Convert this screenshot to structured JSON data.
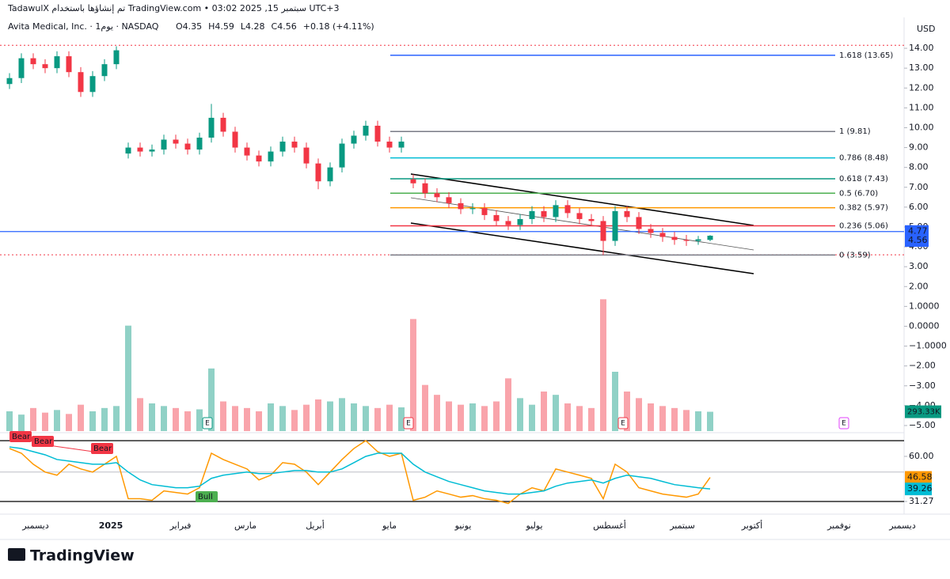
{
  "header": {
    "title": "TadawulX تم إنشاؤها باستخدام TradingView.com • 03:02 2025 ,15 سبتمبر UTC+3",
    "symbol": "Avita Medical, Inc. · 1يوم · NASDAQ",
    "values": [
      "O4.35",
      "H4.59",
      "L4.28",
      "C4.56",
      "+0.18 (+4.11%)"
    ],
    "currency": "USD"
  },
  "footer": {
    "logo": "TradingView"
  },
  "chart_data": {
    "type": "candlestick",
    "up_color": "#089981",
    "down_color": "#f23645",
    "ylim": [
      -5.28,
      14.64
    ],
    "yticks": [
      {
        "value": 14,
        "label": "14.00"
      },
      {
        "value": 13,
        "label": "13.00"
      },
      {
        "value": 12,
        "label": "12.00"
      },
      {
        "value": 11,
        "label": "11.00"
      },
      {
        "value": 10,
        "label": "10.00"
      },
      {
        "value": 9,
        "label": "9.00"
      },
      {
        "value": 8,
        "label": "8.00"
      },
      {
        "value": 7,
        "label": "7.00"
      },
      {
        "value": 6,
        "label": "6.00"
      },
      {
        "value": 5,
        "label": "5.00"
      },
      {
        "value": 4,
        "label": "4.00"
      },
      {
        "value": 3,
        "label": "3.00"
      },
      {
        "value": 2,
        "label": "2.00"
      },
      {
        "value": 1,
        "label": "1.0000"
      },
      {
        "value": 0,
        "label": "0.0000"
      },
      {
        "value": -1,
        "label": "−1.0000"
      },
      {
        "value": -2,
        "label": "−2.00"
      },
      {
        "value": -3,
        "label": "−3.00"
      },
      {
        "value": -4,
        "label": "−4.00"
      },
      {
        "value": -5,
        "label": "−5.00"
      }
    ],
    "x_labels": [
      "ديسمبر",
      "2025",
      "فبراير",
      "مارس",
      "أبريل",
      "مايو",
      "يونيو",
      "يوليو",
      "أغسطس",
      "سبتمبر",
      "أكتوبر",
      "نوفمبر",
      "ديسمبر"
    ],
    "open": [
      12.2,
      12.5,
      13.5,
      13.2,
      13.0,
      13.6,
      12.8,
      11.8,
      12.6,
      13.2,
      8.7,
      9.0,
      8.8,
      8.9,
      9.4,
      9.2,
      8.9,
      9.5,
      10.5,
      9.8,
      9.0,
      8.6,
      8.3,
      8.8,
      9.3,
      9.0,
      8.2,
      7.3,
      8.0,
      9.2,
      9.6,
      10.1,
      9.3,
      9.0,
      7.4,
      7.2,
      6.7,
      6.5,
      6.2,
      5.9,
      5.95,
      5.6,
      5.3,
      5.1,
      5.4,
      5.8,
      5.5,
      6.1,
      5.7,
      5.4,
      5.3,
      4.3,
      5.8,
      5.5,
      4.9,
      4.7,
      4.5,
      4.35,
      4.3,
      4.35
    ],
    "high": [
      12.75,
      13.75,
      13.75,
      13.45,
      13.85,
      13.85,
      13.05,
      12.85,
      13.45,
      14.1,
      9.25,
      9.25,
      9.15,
      9.65,
      9.65,
      9.45,
      9.75,
      11.2,
      10.75,
      10.05,
      9.25,
      8.85,
      9.05,
      9.55,
      9.55,
      9.25,
      8.45,
      8.25,
      9.45,
      9.85,
      10.35,
      10.35,
      9.55,
      9.55,
      7.65,
      7.45,
      6.95,
      6.75,
      6.45,
      6.2,
      6.2,
      5.85,
      5.55,
      5.65,
      6.05,
      6.05,
      6.35,
      6.35,
      5.95,
      5.65,
      5.55,
      6.05,
      6.05,
      5.75,
      5.15,
      4.95,
      4.75,
      4.6,
      4.55,
      4.59
    ],
    "low": [
      11.95,
      12.25,
      12.95,
      12.75,
      12.75,
      12.55,
      11.55,
      11.55,
      12.35,
      12.95,
      8.45,
      8.55,
      8.55,
      8.65,
      8.95,
      8.65,
      8.65,
      9.25,
      9.55,
      8.75,
      8.35,
      8.05,
      8.05,
      8.55,
      8.75,
      7.95,
      6.9,
      7.05,
      7.75,
      8.95,
      9.35,
      9.05,
      8.75,
      8.75,
      6.95,
      6.45,
      6.25,
      5.95,
      5.65,
      5.65,
      5.35,
      5.05,
      4.85,
      4.85,
      5.15,
      5.25,
      5.25,
      5.45,
      5.15,
      5.05,
      3.59,
      4.05,
      5.25,
      4.65,
      4.45,
      4.25,
      4.1,
      4.05,
      4.1,
      4.28
    ],
    "close": [
      12.5,
      13.5,
      13.2,
      13.0,
      13.6,
      12.8,
      11.8,
      12.6,
      13.2,
      13.9,
      9.0,
      8.8,
      8.9,
      9.4,
      9.2,
      8.9,
      9.5,
      10.5,
      9.8,
      9.0,
      8.6,
      8.3,
      8.8,
      9.3,
      9.0,
      8.2,
      7.3,
      8.0,
      9.2,
      9.6,
      10.1,
      9.3,
      9.0,
      9.3,
      7.2,
      6.7,
      6.5,
      6.2,
      5.9,
      5.95,
      5.6,
      5.3,
      5.1,
      5.4,
      5.8,
      5.5,
      6.1,
      5.7,
      5.4,
      5.3,
      4.3,
      5.8,
      5.5,
      4.9,
      4.7,
      4.5,
      4.35,
      4.3,
      4.38,
      4.56
    ],
    "last_close_label": "4.56",
    "price_lines": [
      {
        "value": 4.77,
        "label": "4.77",
        "color": "#2962ff"
      }
    ],
    "alert_lines": [
      14.15,
      3.6
    ],
    "fib_levels": [
      {
        "label": "1.618 (13.65)",
        "price": 13.65,
        "color": "#2962ff"
      },
      {
        "label": "1 (9.81)",
        "price": 9.81,
        "color": "#787b86"
      },
      {
        "label": "0.786 (8.48)",
        "price": 8.48,
        "color": "#00bcd4"
      },
      {
        "label": "0.618 (7.43)",
        "price": 7.43,
        "color": "#089981"
      },
      {
        "label": "0.5 (6.70)",
        "price": 6.7,
        "color": "#4caf50"
      },
      {
        "label": "0.382 (5.97)",
        "price": 5.97,
        "color": "#ff9800"
      },
      {
        "label": "0.236 (5.06)",
        "price": 5.06,
        "color": "#f23645"
      },
      {
        "label": "0 (3.59)",
        "price": 3.59,
        "color": "#787b86"
      }
    ],
    "event_marker": "E",
    "volume": {
      "ylim": [
        0,
        6000
      ],
      "values": [
        300,
        250,
        350,
        280,
        320,
        260,
        400,
        300,
        350,
        380,
        1600,
        500,
        420,
        380,
        350,
        300,
        330,
        950,
        450,
        380,
        350,
        300,
        420,
        380,
        320,
        400,
        480,
        450,
        500,
        420,
        380,
        350,
        400,
        360,
        1700,
        700,
        550,
        450,
        400,
        420,
        380,
        450,
        800,
        500,
        400,
        600,
        550,
        420,
        380,
        350,
        2000,
        900,
        600,
        500,
        420,
        380,
        350,
        320,
        300,
        293.33
      ],
      "last_label": "293.33K"
    },
    "oscillator": {
      "ylim": [
        24.2,
        74.6
      ],
      "yticks": [
        {
          "value": 60,
          "label": "60.00"
        },
        {
          "value": 31.27,
          "label": "31.27"
        }
      ],
      "levels": [
        70,
        50,
        31.27
      ],
      "signals": [
        "Bear",
        "Bear",
        "Bear",
        "Bull"
      ],
      "series": [
        {
          "color": "#ff9800",
          "last_label": "46.58",
          "values": [
            65,
            62,
            55,
            50,
            48,
            55,
            52,
            50,
            55,
            60,
            33,
            33,
            32,
            38,
            37,
            36,
            40,
            62,
            58,
            55,
            52,
            45,
            48,
            56,
            55,
            50,
            42,
            50,
            58,
            65,
            70,
            63,
            60,
            62,
            32,
            34,
            38,
            36,
            34,
            35,
            33,
            32,
            30,
            36,
            40,
            38,
            52,
            50,
            48,
            46,
            33,
            55,
            50,
            40,
            38,
            36,
            35,
            34,
            36,
            46.58
          ]
        },
        {
          "color": "#00bcd4",
          "last_label": "39.26",
          "values": [
            66,
            65,
            63,
            61,
            58,
            57,
            56,
            55,
            55,
            56,
            50,
            45,
            42,
            41,
            40,
            40,
            41,
            46,
            48,
            49,
            50,
            49,
            49,
            50,
            51,
            51,
            50,
            50,
            52,
            56,
            60,
            62,
            62,
            62,
            55,
            50,
            47,
            44,
            42,
            40,
            38,
            37,
            36,
            36,
            37,
            38,
            41,
            43,
            44,
            45,
            43,
            46,
            48,
            47,
            46,
            44,
            42,
            41,
            40,
            39.26
          ]
        }
      ]
    }
  }
}
